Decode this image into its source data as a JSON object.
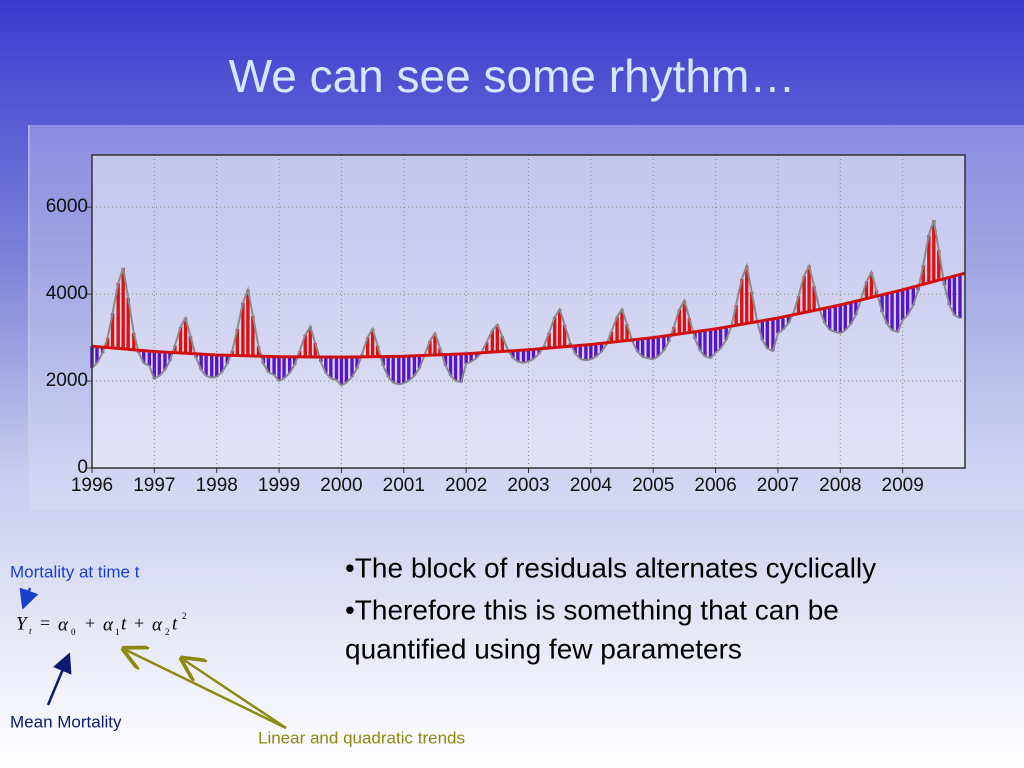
{
  "title": "We can see some rhythm…",
  "chart_data": {
    "type": "line",
    "x": [
      1996,
      1996.08,
      1996.17,
      1996.25,
      1996.33,
      1996.42,
      1996.5,
      1996.58,
      1996.67,
      1996.75,
      1996.83,
      1996.92,
      1997,
      1997.08,
      1997.17,
      1997.25,
      1997.33,
      1997.42,
      1997.5,
      1997.58,
      1997.67,
      1997.75,
      1997.83,
      1997.92,
      1998,
      1998.08,
      1998.17,
      1998.25,
      1998.33,
      1998.42,
      1998.5,
      1998.58,
      1998.67,
      1998.75,
      1998.83,
      1998.92,
      1999,
      1999.08,
      1999.17,
      1999.25,
      1999.33,
      1999.42,
      1999.5,
      1999.58,
      1999.67,
      1999.75,
      1999.83,
      1999.92,
      2000,
      2000.08,
      2000.17,
      2000.25,
      2000.33,
      2000.42,
      2000.5,
      2000.58,
      2000.67,
      2000.75,
      2000.83,
      2000.92,
      2001,
      2001.08,
      2001.17,
      2001.25,
      2001.33,
      2001.42,
      2001.5,
      2001.58,
      2001.67,
      2001.75,
      2001.83,
      2001.92,
      2002,
      2002.08,
      2002.17,
      2002.25,
      2002.33,
      2002.42,
      2002.5,
      2002.58,
      2002.67,
      2002.75,
      2002.83,
      2002.92,
      2003,
      2003.08,
      2003.17,
      2003.25,
      2003.33,
      2003.42,
      2003.5,
      2003.58,
      2003.67,
      2003.75,
      2003.83,
      2003.92,
      2004,
      2004.08,
      2004.17,
      2004.25,
      2004.33,
      2004.42,
      2004.5,
      2004.58,
      2004.67,
      2004.75,
      2004.83,
      2004.92,
      2005,
      2005.08,
      2005.17,
      2005.25,
      2005.33,
      2005.42,
      2005.5,
      2005.58,
      2005.67,
      2005.75,
      2005.83,
      2005.92,
      2006,
      2006.08,
      2006.17,
      2006.25,
      2006.33,
      2006.42,
      2006.5,
      2006.58,
      2006.67,
      2006.75,
      2006.83,
      2006.92,
      2007,
      2007.08,
      2007.17,
      2007.25,
      2007.33,
      2007.42,
      2007.5,
      2007.58,
      2007.67,
      2007.75,
      2007.83,
      2007.92,
      2008,
      2008.08,
      2008.17,
      2008.25,
      2008.33,
      2008.42,
      2008.5,
      2008.58,
      2008.67,
      2008.75,
      2008.83,
      2008.92,
      2009,
      2009.08,
      2009.17,
      2009.25,
      2009.33,
      2009.42,
      2009.5,
      2009.58,
      2009.67,
      2009.75,
      2009.83,
      2009.92
    ],
    "values": [
      2300,
      2415,
      2645,
      2990,
      3565,
      4255,
      4600,
      3910,
      3105,
      2645,
      2415,
      2346,
      2050,
      2120,
      2260,
      2470,
      2820,
      3240,
      3450,
      3030,
      2540,
      2260,
      2120,
      2078,
      2100,
      2200,
      2400,
      2700,
      3200,
      3800,
      4100,
      3500,
      2800,
      2400,
      2200,
      2140,
      2000,
      2063,
      2188,
      2375,
      2688,
      3063,
      3250,
      2875,
      2438,
      2188,
      2063,
      2025,
      1900,
      1965,
      2095,
      2290,
      2615,
      3005,
      3200,
      2810,
      2355,
      2095,
      1965,
      1926,
      1950,
      2008,
      2123,
      2295,
      2583,
      2928,
      3100,
      2755,
      2353,
      2123,
      2008,
      1973,
      2400,
      2445,
      2535,
      2670,
      2895,
      3165,
      3300,
      3030,
      2715,
      2535,
      2445,
      2418,
      2450,
      2510,
      2630,
      2810,
      3110,
      3470,
      3650,
      3290,
      2870,
      2630,
      2510,
      2474,
      2500,
      2558,
      2673,
      2845,
      3133,
      3478,
      3650,
      3305,
      2903,
      2673,
      2558,
      2523,
      2500,
      2568,
      2703,
      2905,
      3243,
      3648,
      3850,
      3445,
      2973,
      2703,
      2568,
      2527,
      2650,
      2750,
      2950,
      3250,
      3750,
      4350,
      4650,
      4050,
      3350,
      2950,
      2750,
      2690,
      3100,
      3178,
      3333,
      3565,
      3953,
      4418,
      4650,
      4185,
      3643,
      3333,
      3178,
      3131,
      3100,
      3170,
      3310,
      3520,
      3870,
      4290,
      4500,
      4080,
      3590,
      3310,
      3170,
      3128,
      3400,
      3515,
      3745,
      4090,
      4665,
      5355,
      5700,
      5010,
      4205,
      3745,
      3515,
      3446
    ],
    "color": "#8a8a8a",
    "trend": {
      "x": [
        1996,
        1997,
        1998,
        1999,
        2000,
        2001,
        2002,
        2003,
        2004,
        2005,
        2006,
        2007,
        2008,
        2009,
        2010
      ],
      "values": [
        2800,
        2680,
        2600,
        2560,
        2550,
        2570,
        2630,
        2720,
        2840,
        3000,
        3200,
        3450,
        3750,
        4100,
        4480
      ],
      "color": "#d01010"
    },
    "bar_colors": {
      "above": "#e01010",
      "below": "#5a14c8"
    },
    "xlim": [
      1996,
      2010
    ],
    "xticks": [
      1996,
      1997,
      1998,
      1999,
      2000,
      2001,
      2002,
      2003,
      2004,
      2005,
      2006,
      2007,
      2008,
      2009
    ],
    "ylim": [
      0,
      7200
    ],
    "yticks": [
      0,
      2000,
      4000,
      6000
    ],
    "grid": true
  },
  "bullets": [
    "•The block of residuals alternates cyclically",
    "•Therefore this is something that can be",
    "quantified using few parameters"
  ],
  "annotations": {
    "time": "Mortality at time t",
    "mean": "Mean Mortality",
    "trends": "Linear and quadratic trends"
  },
  "formula": [
    "Y",
    "t",
    "=",
    "α",
    "0",
    "+",
    "α",
    "1",
    "t",
    "+",
    "α",
    "2",
    "t",
    "2"
  ]
}
